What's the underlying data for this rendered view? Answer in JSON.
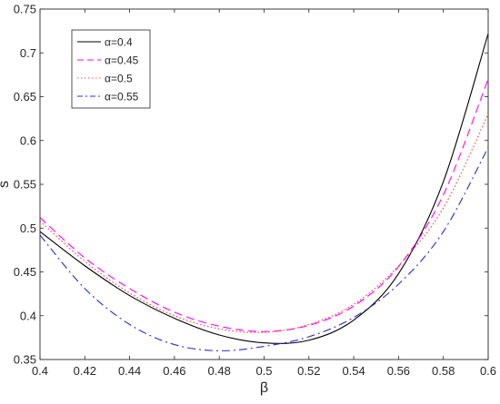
{
  "chart_data": {
    "type": "line",
    "xlabel": "β",
    "ylabel": "s",
    "xlim": [
      0.4,
      0.6
    ],
    "ylim": [
      0.35,
      0.75
    ],
    "xticks": [
      0.4,
      0.42,
      0.44,
      0.46,
      0.48,
      0.5,
      0.52,
      0.54,
      0.56,
      0.58,
      0.6
    ],
    "xtick_labels": [
      "0.4",
      "0.42",
      "0.44",
      "0.46",
      "0.48",
      "0.5",
      "0.52",
      "0.54",
      "0.56",
      "0.58",
      "0.6"
    ],
    "yticks": [
      0.35,
      0.4,
      0.45,
      0.5,
      0.55,
      0.6,
      0.65,
      0.7,
      0.75
    ],
    "ytick_labels": [
      "0.35",
      "0.4",
      "0.45",
      "0.5",
      "0.55",
      "0.6",
      "0.65",
      "0.7",
      "0.75"
    ],
    "grid": false,
    "legend_position": "top-left",
    "x": [
      0.4,
      0.42,
      0.44,
      0.46,
      0.48,
      0.5,
      0.52,
      0.54,
      0.56,
      0.58,
      0.6
    ],
    "series": [
      {
        "name": "α=0.4",
        "color": "#000000",
        "dash": "solid",
        "values": [
          0.496,
          0.457,
          0.423,
          0.397,
          0.378,
          0.369,
          0.372,
          0.395,
          0.448,
          0.553,
          0.722
        ]
      },
      {
        "name": "α=0.45",
        "color": "#ff00ff",
        "dash": "dashed",
        "values": [
          0.512,
          0.466,
          0.431,
          0.404,
          0.388,
          0.382,
          0.389,
          0.411,
          0.456,
          0.538,
          0.67
        ]
      },
      {
        "name": "α=0.5",
        "color": "#ff5050",
        "dash": "dotted",
        "values": [
          0.508,
          0.462,
          0.426,
          0.4,
          0.385,
          0.381,
          0.39,
          0.413,
          0.457,
          0.523,
          0.63
        ]
      },
      {
        "name": "α=0.55",
        "color": "#2b2bd9",
        "dash": "dashdot",
        "values": [
          0.492,
          0.431,
          0.39,
          0.367,
          0.36,
          0.365,
          0.376,
          0.398,
          0.436,
          0.496,
          0.592
        ]
      }
    ]
  }
}
